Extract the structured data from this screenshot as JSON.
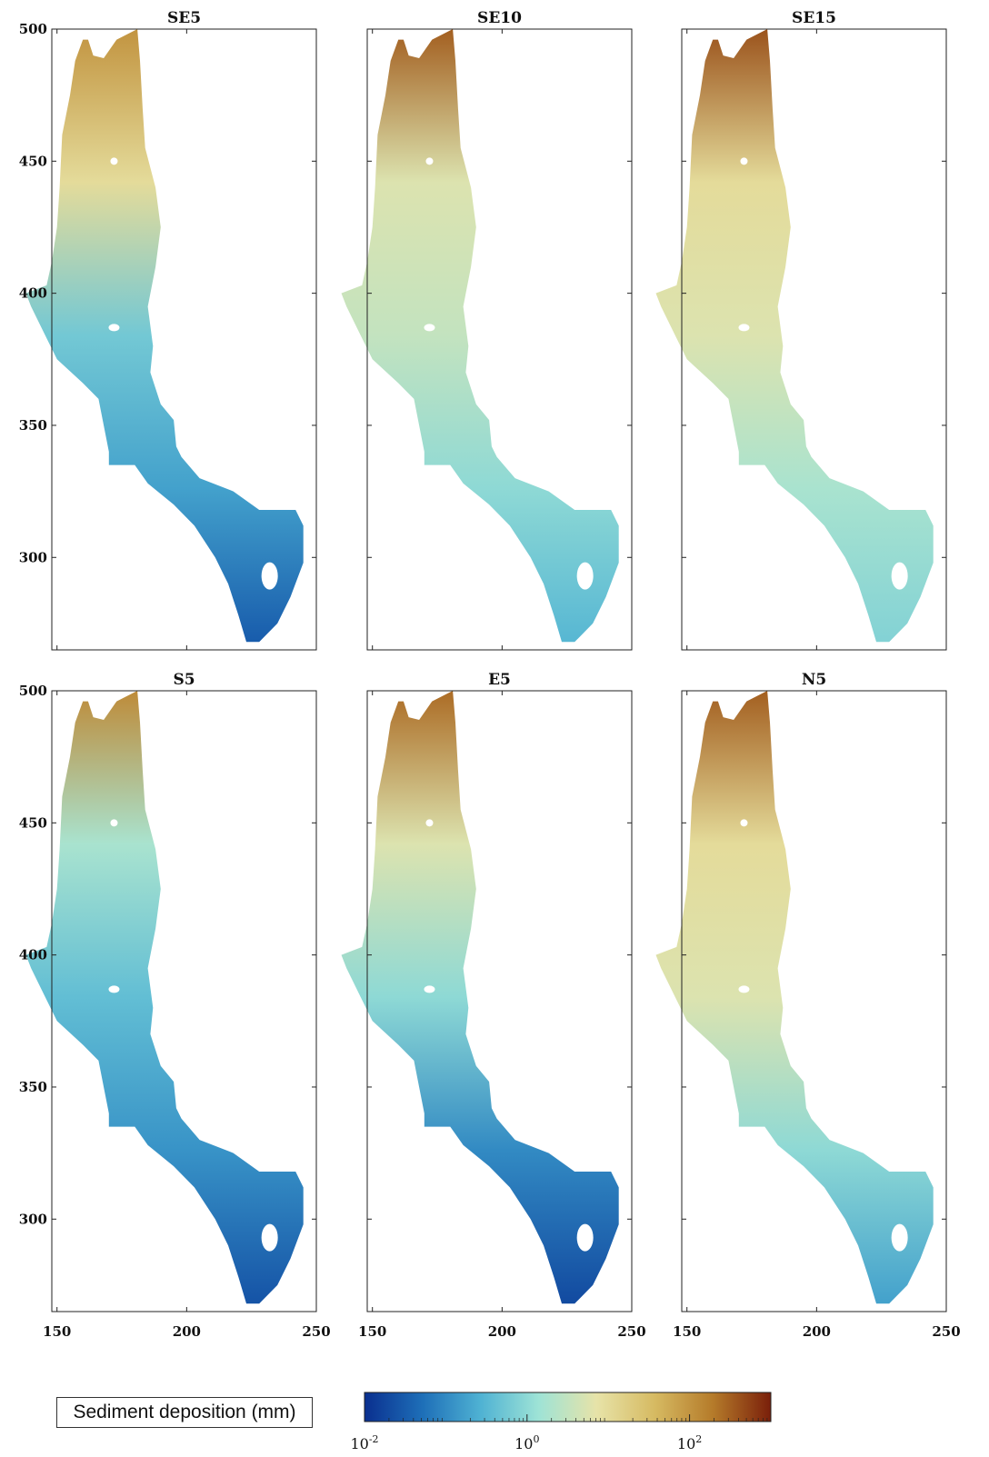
{
  "chart_data": {
    "type": "heatmap",
    "colorbar": {
      "label": "Sediment deposition (mm)",
      "scale": "log",
      "range": [
        0.01,
        1000
      ],
      "tick_labels": [
        {
          "base": "10",
          "exp": "-2"
        },
        {
          "base": "10",
          "exp": "0"
        },
        {
          "base": "10",
          "exp": "2"
        }
      ],
      "colors": [
        "#0a2f8f",
        "#1e6fb8",
        "#4fb2d3",
        "#9ee3d6",
        "#e7e3a8",
        "#d6ba62",
        "#b57b2a",
        "#7a1f0a"
      ]
    },
    "panels": [
      {
        "title": "SE5",
        "xlim": [
          148,
          250
        ],
        "ylim": [
          265,
          500
        ],
        "yticks": [
          "500",
          "450",
          "400",
          "350",
          "300"
        ],
        "xticks": [],
        "level": [
          0.8,
          0.6,
          0.35,
          0.25,
          0.1
        ]
      },
      {
        "title": "SE10",
        "xlim": [
          148,
          250
        ],
        "ylim": [
          265,
          500
        ],
        "yticks": [],
        "xticks": [],
        "level": [
          0.9,
          0.55,
          0.5,
          0.4,
          0.3
        ]
      },
      {
        "title": "SE15",
        "xlim": [
          148,
          250
        ],
        "ylim": [
          265,
          500
        ],
        "yticks": [],
        "xticks": [],
        "level": [
          0.92,
          0.6,
          0.55,
          0.45,
          0.38
        ]
      },
      {
        "title": "S5",
        "xlim": [
          148,
          250
        ],
        "ylim": [
          265,
          500
        ],
        "yticks": [
          "500",
          "450",
          "400",
          "350",
          "300"
        ],
        "xticks": [
          "150",
          "200",
          "250"
        ],
        "level": [
          0.82,
          0.45,
          0.32,
          0.22,
          0.08
        ]
      },
      {
        "title": "E5",
        "xlim": [
          148,
          250
        ],
        "ylim": [
          265,
          500
        ],
        "yticks": [],
        "xticks": [
          "150",
          "200",
          "250"
        ],
        "level": [
          0.88,
          0.55,
          0.4,
          0.2,
          0.06
        ]
      },
      {
        "title": "N5",
        "xlim": [
          148,
          250
        ],
        "ylim": [
          265,
          500
        ],
        "yticks": [],
        "xticks": [
          "150",
          "200",
          "250"
        ],
        "level": [
          0.9,
          0.6,
          0.55,
          0.4,
          0.25
        ]
      }
    ]
  }
}
